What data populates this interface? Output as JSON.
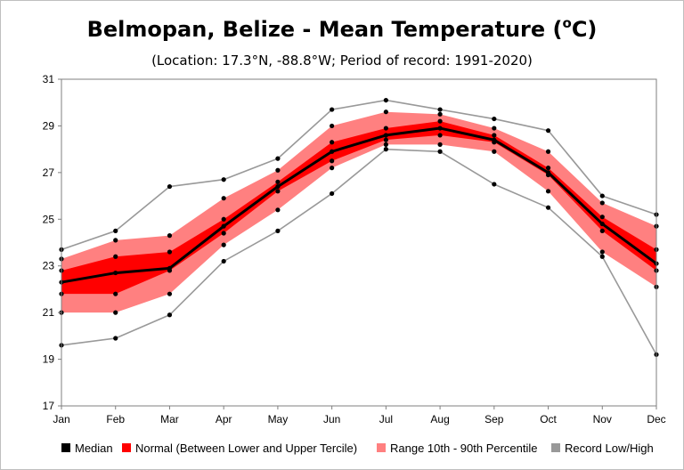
{
  "chart_data": {
    "type": "line",
    "title_prefix": "Belmopan, Belize - Mean Temperature (",
    "title_sup": "o",
    "title_suffix": "C)",
    "subtitle": "(Location: 17.3°N, -88.8°W; Period of record: 1991-2020)",
    "xlabel": "",
    "ylabel": "",
    "categories": [
      "Jan",
      "Feb",
      "Mar",
      "Apr",
      "May",
      "Jun",
      "Jul",
      "Aug",
      "Sep",
      "Oct",
      "Nov",
      "Dec"
    ],
    "ylim": [
      17,
      31
    ],
    "yticks": [
      "17",
      "19",
      "21",
      "23",
      "25",
      "27",
      "29",
      "31"
    ],
    "grid": false,
    "legend_position": "bottom",
    "colors": {
      "median": "#000000",
      "tercile": "#ff0000",
      "percentile": "#ff8080",
      "record": "#999999"
    },
    "series": [
      {
        "name": "Median",
        "values": [
          22.3,
          22.7,
          22.9,
          24.7,
          26.4,
          27.9,
          28.6,
          28.9,
          28.4,
          27.0,
          24.8,
          23.1
        ]
      },
      {
        "name": "Lower Tercile",
        "values": [
          21.8,
          21.8,
          22.8,
          24.4,
          26.2,
          27.5,
          28.4,
          28.6,
          28.3,
          26.9,
          24.5,
          22.8
        ]
      },
      {
        "name": "Upper Tercile",
        "values": [
          22.8,
          23.4,
          23.6,
          25.0,
          26.6,
          28.3,
          28.9,
          29.2,
          28.6,
          27.2,
          25.1,
          23.7
        ]
      },
      {
        "name": "10th Percentile",
        "values": [
          21.0,
          21.0,
          21.8,
          23.9,
          25.4,
          27.2,
          28.2,
          28.2,
          27.9,
          26.2,
          23.6,
          22.1
        ]
      },
      {
        "name": "90th Percentile",
        "values": [
          23.3,
          24.1,
          24.3,
          25.9,
          27.1,
          29.0,
          29.6,
          29.5,
          28.9,
          27.9,
          25.7,
          24.7
        ]
      },
      {
        "name": "Record Low",
        "values": [
          19.6,
          19.9,
          20.9,
          23.2,
          24.5,
          26.1,
          28.0,
          27.9,
          26.5,
          25.5,
          23.4,
          19.2
        ]
      },
      {
        "name": "Record High",
        "values": [
          23.7,
          24.5,
          26.4,
          26.7,
          27.6,
          29.7,
          30.1,
          29.7,
          29.3,
          28.8,
          26.0,
          25.2
        ]
      }
    ],
    "legend": [
      {
        "key": "median",
        "label": "Median"
      },
      {
        "key": "tercile",
        "label": "Normal (Between Lower and Upper Tercile)"
      },
      {
        "key": "percentile",
        "label": "Range 10th - 90th Percentile"
      },
      {
        "key": "record",
        "label": "Record Low/High"
      }
    ]
  }
}
